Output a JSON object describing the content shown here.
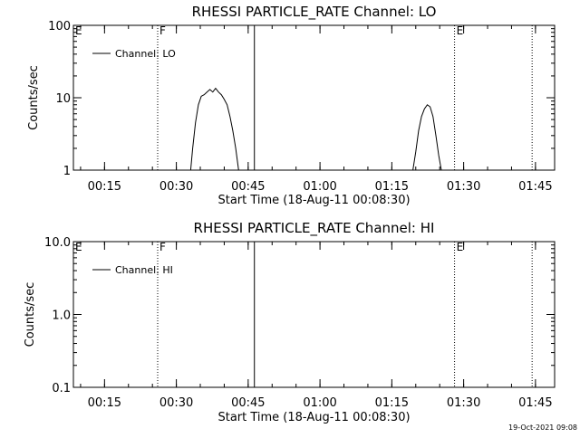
{
  "chart_data": [
    {
      "type": "line",
      "title": "RHESSI PARTICLE_RATE Channel: LO",
      "xlabel": "Start Time (18-Aug-11 00:08:30)",
      "ylabel": "Counts/sec",
      "yscale": "log",
      "ylim": [
        1,
        100
      ],
      "ytick_labels": [
        "1",
        "10",
        "100"
      ],
      "xlim": [
        "00:08:30",
        "01:49:00"
      ],
      "xtick_labels": [
        "00:15",
        "00:30",
        "00:45",
        "01:00",
        "01:15",
        "01:30",
        "01:45"
      ],
      "grid": false,
      "legend": {
        "placement": "top-left",
        "entries": [
          "Channel: LO"
        ]
      },
      "series": [
        {
          "name": "Channel: LO",
          "color": "#000000",
          "segments": [
            {
              "x": [
                "00:33:00",
                "00:33:24",
                "00:34:00",
                "00:34:36",
                "00:35:12",
                "00:35:48",
                "00:36:24",
                "00:37:00",
                "00:37:36",
                "00:38:12",
                "00:38:48",
                "00:39:24",
                "00:40:00",
                "00:40:36",
                "00:41:12",
                "00:41:48",
                "00:42:24",
                "00:43:00"
              ],
              "y": [
                1,
                2,
                4.5,
                8,
                10.5,
                11,
                12,
                13,
                12,
                13.5,
                12,
                11,
                9.5,
                8,
                5.5,
                3.5,
                2,
                1
              ]
            },
            {
              "x": [
                "01:19:24",
                "01:20:00",
                "01:20:36",
                "01:21:12",
                "01:21:48",
                "01:22:24",
                "01:23:00",
                "01:23:36",
                "01:24:12",
                "01:24:48",
                "01:25:20"
              ],
              "y": [
                1,
                1.8,
                3.5,
                5.5,
                7,
                8,
                7.5,
                5.5,
                3,
                1.6,
                1
              ]
            }
          ]
        }
      ],
      "annotations": [
        {
          "text": "E",
          "time": "00:08:30",
          "style": "label"
        },
        {
          "text": "F",
          "time": "00:26:06",
          "style": "dotted"
        },
        {
          "text": "",
          "time": "00:46:18",
          "style": "solid"
        },
        {
          "text": "E",
          "time": "01:28:06",
          "style": "dotted"
        },
        {
          "text": "",
          "time": "01:44:18",
          "style": "dotted"
        }
      ]
    },
    {
      "type": "line",
      "title": "RHESSI PARTICLE_RATE Channel: HI",
      "xlabel": "Start Time (18-Aug-11 00:08:30)",
      "ylabel": "Counts/sec",
      "yscale": "log",
      "ylim": [
        0.1,
        10
      ],
      "ytick_labels": [
        "0.1",
        "1.0",
        "10.0"
      ],
      "xlim": [
        "00:08:30",
        "01:49:00"
      ],
      "xtick_labels": [
        "00:15",
        "00:30",
        "00:45",
        "01:00",
        "01:15",
        "01:30",
        "01:45"
      ],
      "grid": false,
      "legend": {
        "placement": "top-left",
        "entries": [
          "Channel: HI"
        ]
      },
      "series": [
        {
          "name": "Channel: HI",
          "color": "#000000",
          "segments": []
        }
      ],
      "annotations": [
        {
          "text": "E",
          "time": "00:08:30",
          "style": "label"
        },
        {
          "text": "F",
          "time": "00:26:06",
          "style": "dotted"
        },
        {
          "text": "",
          "time": "00:46:18",
          "style": "solid"
        },
        {
          "text": "E",
          "time": "01:28:06",
          "style": "dotted"
        },
        {
          "text": "",
          "time": "01:44:18",
          "style": "dotted"
        }
      ]
    }
  ],
  "footer": {
    "timestamp": "19-Oct-2021 09:08"
  }
}
